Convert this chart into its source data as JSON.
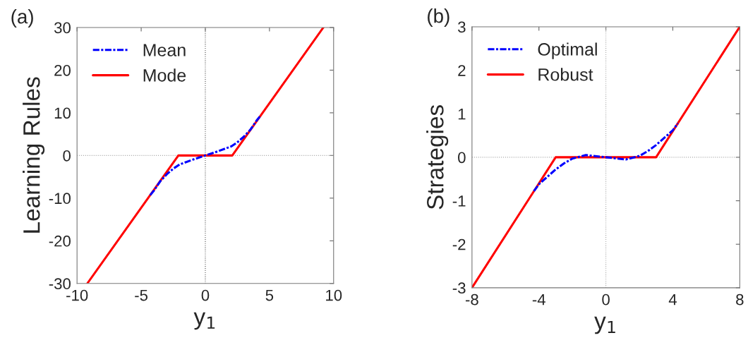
{
  "chart_data": [
    {
      "type": "line",
      "xlabel": "y$_{1}$",
      "ylabel": "Learning Rules",
      "annotations": [
        "(a)"
      ],
      "xlim": [
        -10,
        10
      ],
      "ylim": [
        -30,
        30
      ],
      "xticks": [
        -10,
        -5,
        0,
        5,
        10
      ],
      "yticks": [
        -30,
        -20,
        -10,
        0,
        10,
        20,
        30
      ],
      "grid": false,
      "legend": "top left",
      "ref_lines": [
        {
          "axis": "x",
          "value": 0,
          "color": "#555555",
          "line_style": "dotted"
        },
        {
          "axis": "y",
          "value": 0,
          "color": "#aaaaaa",
          "line_style": "dotted"
        }
      ],
      "series": [
        {
          "name": "Mean",
          "color": "#0000ff",
          "line_style": "dashdot",
          "x": [
            -4.3,
            -4,
            -3.5,
            -3,
            -2.5,
            -2,
            -1,
            0,
            1,
            2,
            2.5,
            3,
            3.5,
            4,
            4.3
          ],
          "values": [
            -9.3,
            -8.2,
            -6,
            -4.4,
            -3.1,
            -2.1,
            -1,
            0,
            1,
            2.1,
            3.1,
            4.4,
            6,
            8.2,
            9.3
          ]
        },
        {
          "name": "Mode",
          "color": "#ff0000",
          "line_style": "solid",
          "x": [
            -9.2,
            -2.1,
            2.1,
            9.2
          ],
          "values": [
            -30,
            0,
            0,
            30
          ]
        }
      ]
    },
    {
      "type": "line",
      "xlabel": "y$_{1}$",
      "ylabel": "Strategies",
      "annotations": [
        "(b)"
      ],
      "xlim": [
        -8,
        8
      ],
      "ylim": [
        -3,
        3
      ],
      "xticks": [
        -8,
        -4,
        0,
        4,
        8
      ],
      "yticks": [
        -3,
        -2,
        -1,
        0,
        1,
        2,
        3
      ],
      "grid": false,
      "legend": "top left",
      "ref_lines": [
        {
          "axis": "x",
          "value": 0,
          "color": "#aaaaaa",
          "line_style": "dotted"
        },
        {
          "axis": "y",
          "value": 0,
          "color": "#aaaaaa",
          "line_style": "dotted"
        }
      ],
      "series": [
        {
          "name": "Optimal",
          "color": "#0000ff",
          "line_style": "dashdot",
          "x": [
            -4.3,
            -4,
            -3.5,
            -3,
            -2.5,
            -2,
            -1.2,
            0,
            1.2,
            2,
            2.5,
            3,
            3.5,
            4,
            4.3
          ],
          "values": [
            -0.78,
            -0.62,
            -0.45,
            -0.28,
            -0.14,
            -0.03,
            0.05,
            0,
            -0.05,
            0.03,
            0.14,
            0.28,
            0.45,
            0.62,
            0.78
          ]
        },
        {
          "name": "Robust",
          "color": "#ff0000",
          "line_style": "solid",
          "x": [
            -8,
            -3,
            3,
            8
          ],
          "values": [
            -3,
            0,
            0,
            3
          ]
        }
      ]
    }
  ]
}
